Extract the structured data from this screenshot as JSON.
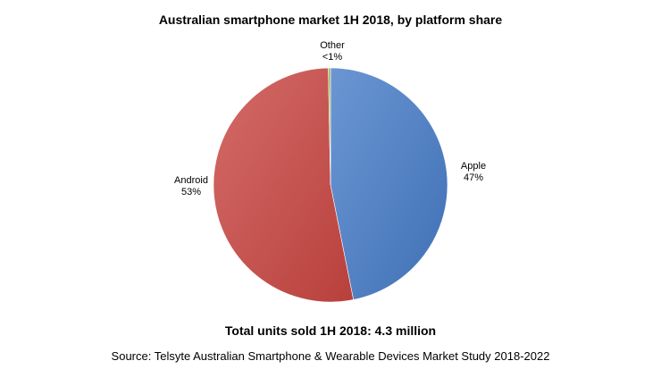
{
  "chart_data": {
    "type": "pie",
    "title": "Australian smartphone market 1H 2018, by platform share",
    "slices": [
      {
        "name": "Apple",
        "label": "47%",
        "value": 47,
        "color": "#4f7ec0"
      },
      {
        "name": "Android",
        "label": "53%",
        "value": 53,
        "color": "#c0504d"
      },
      {
        "name": "Other",
        "label": "<1%",
        "value": 0.3,
        "color": "#9bbb59"
      }
    ],
    "start_angle_deg": 0,
    "direction": "clockwise"
  },
  "footer": {
    "total": "Total units sold 1H 2018: 4.3 million",
    "source": "Source: Telsyte Australian Smartphone & Wearable Devices Market Study 2018-2022"
  }
}
